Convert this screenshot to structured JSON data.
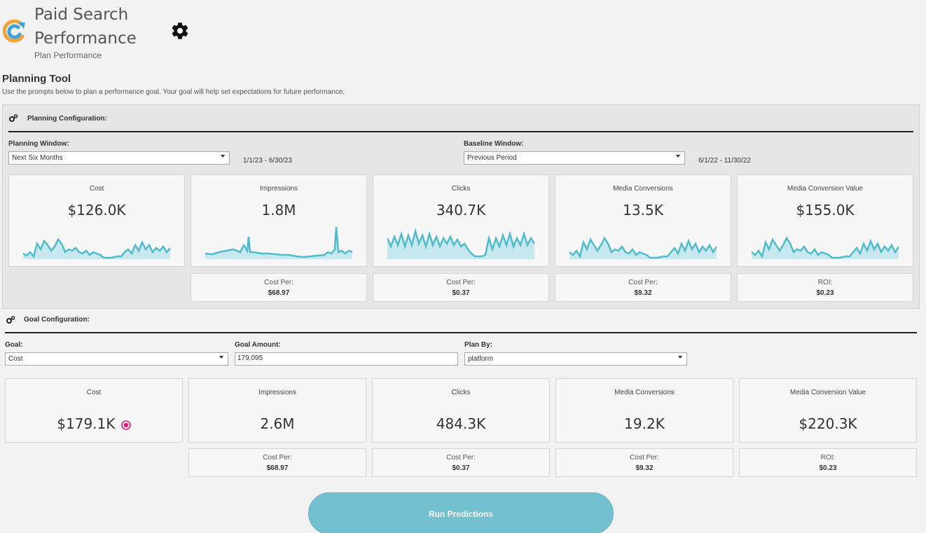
{
  "header": {
    "title_line1": "Paid Search",
    "title_line2": "Performance",
    "subtitle": "Plan Performance",
    "logo_icon": "refresh-logo-icon",
    "settings_icon": "gear-icon"
  },
  "planning_tool": {
    "title": "Planning Tool",
    "description": "Use the prompts below to plan a performance goal. Your goal will help set expectations for future performance."
  },
  "planning_config": {
    "heading": "Planning Configuration:",
    "planning_window_label": "Planning Window:",
    "planning_window_value": "Next Six Months",
    "planning_window_range": "1/1/23 - 6/30/23",
    "baseline_window_label": "Baseline Window:",
    "baseline_window_value": "Previous Period",
    "baseline_window_range": "6/1/22 - 11/30/22",
    "metrics": [
      {
        "title": "Cost",
        "value": "$126.0K"
      },
      {
        "title": "Impressions",
        "value": "1.8M"
      },
      {
        "title": "Clicks",
        "value": "340.7K"
      },
      {
        "title": "Media Conversions",
        "value": "13.5K"
      },
      {
        "title": "Media Conversion Value",
        "value": "$155.0K"
      }
    ],
    "sub_metrics": [
      {
        "label": "Cost Per:",
        "value": "$68.97"
      },
      {
        "label": "Cost Per:",
        "value": "$0.37"
      },
      {
        "label": "Cost Per:",
        "value": "$9.32"
      },
      {
        "label": "ROI:",
        "value": "$0.23"
      }
    ]
  },
  "goal_config": {
    "heading": "Goal Configuration:",
    "goal_label": "Goal:",
    "goal_value": "Cost",
    "goal_amount_label": "Goal Amount:",
    "goal_amount_value": "179,095",
    "plan_by_label": "Plan By:",
    "plan_by_value": "platform",
    "metrics": [
      {
        "title": "Cost",
        "value": "$179.1K"
      },
      {
        "title": "Impressions",
        "value": "2.6M"
      },
      {
        "title": "Clicks",
        "value": "484.3K"
      },
      {
        "title": "Media Conversions",
        "value": "19.2K"
      },
      {
        "title": "Media Conversion Value",
        "value": "$220.3K"
      }
    ],
    "sub_metrics": [
      {
        "label": "Cost Per:",
        "value": "$68.97"
      },
      {
        "label": "Cost Per:",
        "value": "$0.37"
      },
      {
        "label": "Cost Per:",
        "value": "$9.32"
      },
      {
        "label": "ROI:",
        "value": "$0.23"
      }
    ],
    "goal_indicator_color": "#e0197d"
  },
  "actions": {
    "run_label": "Run Predictions"
  },
  "colors": {
    "sparkline": "#4fbccb",
    "sparkline_fill": "#c7e8ee",
    "run_button": "#73c0d0"
  }
}
